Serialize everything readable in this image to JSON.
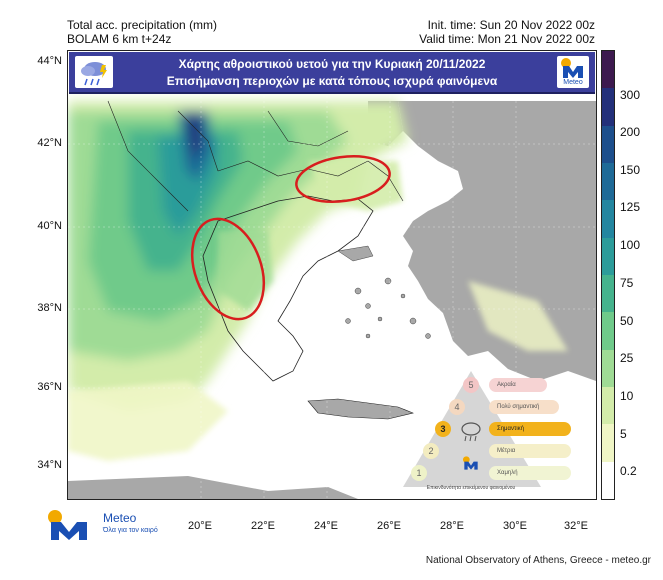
{
  "header": {
    "title": "Total acc. precipitation (mm)",
    "model": "BOLAM 6 km t+24z",
    "init_time": "Init. time: Sun 20 Nov 2022 00z",
    "valid_time": "Valid time: Mon 21 Nov 2022 00z"
  },
  "banner": {
    "line1": "Χάρτης αθροιστικού υετού για την Κυριακή 20/11/2022",
    "line2": "Επισήμανση περιοχών με κατά τόπους ισχυρά φαινόμενα",
    "logo_text": "Meteo"
  },
  "axes": {
    "lat_ticks": [
      "44°N",
      "42°N",
      "40°N",
      "38°N",
      "36°N",
      "34°N"
    ],
    "lon_ticks": [
      "20°E",
      "22°E",
      "24°E",
      "26°E",
      "28°E",
      "30°E",
      "32°E"
    ]
  },
  "colorbar": {
    "labels": [
      "300",
      "200",
      "150",
      "125",
      "100",
      "75",
      "50",
      "25",
      "10",
      "5",
      "0.2"
    ],
    "colors": [
      "#3d1a4f",
      "#23307a",
      "#1d4f8c",
      "#1e6a97",
      "#2386a0",
      "#2c9c9a",
      "#45b38d",
      "#6fca8a",
      "#9fdb95",
      "#d3ecaa",
      "#f0f6c6",
      "#ffffff"
    ]
  },
  "warning_legend": {
    "levels": [
      {
        "num": "5",
        "label": "Ακραία"
      },
      {
        "num": "4",
        "label": "Πολύ σημαντική"
      },
      {
        "num": "3",
        "label": "Σημαντική"
      },
      {
        "num": "2",
        "label": "Μέτρια"
      },
      {
        "num": "1",
        "label": "Χαμηλή"
      }
    ],
    "highlighted_level": "3",
    "caption": "Επικινδυνότητα επικείμενου φαινομένου"
  },
  "footer": {
    "logo_name": "Meteo",
    "logo_tagline": "Όλα για τον καιρό",
    "credit": "National Observatory of Athens, Greece - meteo.gr"
  },
  "colors": {
    "land": "#a8a8a8",
    "sea": "#ffffff",
    "highlight_ellipse": "#d81e1e",
    "banner": "#3b3f9c"
  }
}
